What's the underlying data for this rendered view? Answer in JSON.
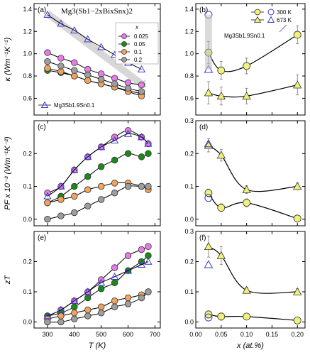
{
  "chart_data": [
    {
      "type": "line",
      "panel_label": "(a)",
      "annotation": "Mg3(Sb1−2xBixSnx)2",
      "ylabel": "κ (Wm⁻¹K⁻¹)",
      "xlim": [
        250,
        720
      ],
      "ylim": [
        0.45,
        1.45
      ],
      "y_ticks": [
        "0.6",
        "0.8",
        "1.0",
        "1.2",
        "1.4"
      ],
      "x_ticks": [],
      "legend_title": "x",
      "legend_position": "top-right",
      "series": [
        {
          "name": "0.025",
          "color": "#e87be8",
          "marker": "circle",
          "x": [
            300,
            350,
            400,
            450,
            500,
            550,
            600,
            650
          ],
          "y": [
            1.01,
            0.96,
            0.92,
            0.86,
            0.82,
            0.78,
            0.74,
            0.72
          ]
        },
        {
          "name": "0.05",
          "color": "#1a8a1a",
          "marker": "circle",
          "x": [
            300,
            350,
            400,
            450,
            500,
            550,
            600,
            650
          ],
          "y": [
            0.85,
            0.83,
            0.8,
            0.76,
            0.73,
            0.7,
            0.67,
            0.64
          ]
        },
        {
          "name": "0.1",
          "color": "#f5a35c",
          "marker": "circle",
          "x": [
            300,
            350,
            400,
            450,
            500,
            550,
            600,
            650
          ],
          "y": [
            0.87,
            0.84,
            0.8,
            0.76,
            0.73,
            0.7,
            0.66,
            0.62
          ]
        },
        {
          "name": "0.2",
          "color": "#9e9e9e",
          "marker": "circle",
          "x": [
            300,
            350,
            400,
            450,
            500,
            550,
            600,
            650
          ],
          "y": [
            0.93,
            0.89,
            0.85,
            0.81,
            0.77,
            0.73,
            0.69,
            0.66
          ]
        },
        {
          "name": "Mg3Sb1.9Sn0.1",
          "color": "#3a3ad0",
          "marker": "triangle-open",
          "x": [
            300,
            350,
            400,
            450,
            500,
            550,
            600,
            650
          ],
          "y": [
            1.35,
            1.27,
            1.21,
            1.13,
            1.06,
            0.99,
            0.92,
            0.86
          ]
        }
      ],
      "arrow": {
        "from": [
          300,
          1.36
        ],
        "to": [
          650,
          0.73
        ]
      }
    },
    {
      "type": "scatter",
      "panel_label": "(b)",
      "xlim": [
        0.0,
        0.215
      ],
      "ylim": [
        0.45,
        1.45
      ],
      "y_ticks": [
        "0.6",
        "0.8",
        "1.0",
        "1.2",
        "1.4"
      ],
      "x_ticks": [],
      "legend": [
        {
          "label": "300 K",
          "marker": "circle"
        },
        {
          "label": "673 K",
          "marker": "triangle"
        }
      ],
      "annotation": "Mg3Sb1.9Sn0.1",
      "series": [
        {
          "name": "300 K",
          "color": "#f1f17a",
          "marker": "circle",
          "x": [
            0.025,
            0.05,
            0.1,
            0.2
          ],
          "y": [
            1.01,
            0.85,
            0.89,
            1.17
          ],
          "err": [
            0.1,
            0.08,
            0.07,
            0.08
          ]
        },
        {
          "name": "673 K",
          "color": "#f1f17a",
          "marker": "triangle",
          "x": [
            0.025,
            0.05,
            0.1,
            0.2
          ],
          "y": [
            0.65,
            0.62,
            0.62,
            0.72
          ],
          "err": [
            0.1,
            0.08,
            0.07,
            0.09
          ]
        },
        {
          "name": "Mg3Sb1.9Sn0.1 300 K",
          "color": "#3a3ad0",
          "marker": "circle-open",
          "x": [
            0.025
          ],
          "y": [
            1.35
          ],
          "err": [
            0
          ]
        },
        {
          "name": "Mg3Sb1.9Sn0.1 673 K",
          "color": "#3a3ad0",
          "marker": "triangle-open",
          "x": [
            0.025
          ],
          "y": [
            0.86
          ],
          "err": [
            0
          ]
        }
      ]
    },
    {
      "type": "line",
      "panel_label": "(c)",
      "ylabel": "PF x 10⁻³ (Wm⁻¹K⁻²)",
      "xlim": [
        250,
        720
      ],
      "ylim": [
        -0.02,
        0.3
      ],
      "y_ticks": [
        "0.0",
        "0.1",
        "0.2"
      ],
      "x_ticks": [],
      "series": [
        {
          "name": "0.025",
          "color": "#e87be8",
          "marker": "circle",
          "x": [
            300,
            350,
            400,
            450,
            500,
            550,
            600,
            650,
            675
          ],
          "y": [
            0.08,
            0.1,
            0.15,
            0.19,
            0.22,
            0.25,
            0.27,
            0.25,
            0.23
          ]
        },
        {
          "name": "0.05",
          "color": "#1a8a1a",
          "marker": "circle",
          "x": [
            300,
            350,
            400,
            450,
            500,
            550,
            600,
            650,
            675
          ],
          "y": [
            0.05,
            0.07,
            0.1,
            0.13,
            0.16,
            0.18,
            0.2,
            0.19,
            0.2
          ]
        },
        {
          "name": "0.1",
          "color": "#f5a35c",
          "marker": "circle",
          "x": [
            300,
            350,
            400,
            450,
            500,
            550,
            600,
            650,
            675
          ],
          "y": [
            0.05,
            0.06,
            0.07,
            0.09,
            0.1,
            0.11,
            0.11,
            0.1,
            0.09
          ]
        },
        {
          "name": "0.2",
          "color": "#9e9e9e",
          "marker": "circle",
          "x": [
            300,
            350,
            400,
            450,
            500,
            550,
            600,
            650,
            675
          ],
          "y": [
            0.0,
            0.01,
            0.02,
            0.04,
            0.06,
            0.08,
            0.1,
            0.1,
            0.1
          ]
        },
        {
          "name": "Mg3Sb1.9Sn0.1",
          "color": "#3a3ad0",
          "marker": "triangle-open",
          "x": [
            300,
            350,
            400,
            450,
            500,
            550,
            600,
            650,
            675
          ],
          "y": [
            0.07,
            0.1,
            0.15,
            0.19,
            0.22,
            0.24,
            0.26,
            0.25,
            0.23
          ]
        }
      ]
    },
    {
      "type": "scatter",
      "panel_label": "(d)",
      "xlim": [
        0.0,
        0.215
      ],
      "ylim": [
        -0.02,
        0.3
      ],
      "y_ticks": [
        "0.0",
        "0.1",
        "0.2",
        "0.3"
      ],
      "x_ticks": [],
      "series": [
        {
          "name": "300 K",
          "color": "#f1f17a",
          "marker": "circle",
          "x": [
            0.025,
            0.05,
            0.1,
            0.2
          ],
          "y": [
            0.08,
            0.035,
            0.05,
            0.002
          ],
          "err": [
            0.012,
            0.012,
            0.012,
            0.01
          ]
        },
        {
          "name": "673 K",
          "color": "#f1f17a",
          "marker": "triangle",
          "x": [
            0.025,
            0.05,
            0.1,
            0.2
          ],
          "y": [
            0.225,
            0.195,
            0.09,
            0.1
          ],
          "err": [
            0.02,
            0.018,
            0.012,
            0.01
          ]
        },
        {
          "name": "Mg3Sb1.9Sn0.1 300 K",
          "color": "#3a3ad0",
          "marker": "circle-open",
          "x": [
            0.025
          ],
          "y": [
            0.065
          ],
          "err": [
            0
          ]
        },
        {
          "name": "Mg3Sb1.9Sn0.1 673 K",
          "color": "#3a3ad0",
          "marker": "triangle-open",
          "x": [
            0.025
          ],
          "y": [
            0.23
          ],
          "err": [
            0
          ]
        }
      ]
    },
    {
      "type": "line",
      "panel_label": "(e)",
      "ylabel": "zT",
      "xlabel": "T (K)",
      "xlim": [
        250,
        720
      ],
      "ylim": [
        -0.02,
        0.3
      ],
      "y_ticks": [
        "0.0",
        "0.1",
        "0.2"
      ],
      "x_ticks": [
        "300",
        "400",
        "500",
        "600",
        "700"
      ],
      "series": [
        {
          "name": "0.025",
          "color": "#e87be8",
          "marker": "circle",
          "x": [
            300,
            350,
            400,
            450,
            500,
            550,
            600,
            650,
            675
          ],
          "y": [
            0.02,
            0.04,
            0.07,
            0.1,
            0.14,
            0.18,
            0.22,
            0.24,
            0.25
          ]
        },
        {
          "name": "0.05",
          "color": "#1a8a1a",
          "marker": "circle",
          "x": [
            300,
            350,
            400,
            450,
            500,
            550,
            600,
            650,
            675
          ],
          "y": [
            0.02,
            0.03,
            0.05,
            0.08,
            0.11,
            0.13,
            0.17,
            0.2,
            0.22
          ]
        },
        {
          "name": "0.1",
          "color": "#f5a35c",
          "marker": "circle",
          "x": [
            300,
            350,
            400,
            450,
            500,
            550,
            600,
            650,
            675
          ],
          "y": [
            0.01,
            0.02,
            0.03,
            0.04,
            0.05,
            0.07,
            0.08,
            0.09,
            0.1
          ]
        },
        {
          "name": "0.2",
          "color": "#9e9e9e",
          "marker": "circle",
          "x": [
            300,
            350,
            400,
            450,
            500,
            550,
            600,
            650,
            675
          ],
          "y": [
            0.0,
            0.0,
            0.01,
            0.02,
            0.03,
            0.05,
            0.06,
            0.08,
            0.1
          ]
        },
        {
          "name": "Mg3Sb1.9Sn0.1",
          "color": "#3a3ad0",
          "marker": "triangle-open",
          "x": [
            300,
            350,
            400,
            450,
            500,
            550,
            600,
            650,
            675
          ],
          "y": [
            0.02,
            0.04,
            0.07,
            0.1,
            0.13,
            0.15,
            0.17,
            0.19,
            0.2
          ]
        }
      ]
    },
    {
      "type": "scatter",
      "panel_label": "(f)",
      "xlabel": "x (at.%)",
      "xlim": [
        0.0,
        0.215
      ],
      "ylim": [
        -0.02,
        0.3
      ],
      "y_ticks": [
        "0.0",
        "0.1",
        "0.2",
        "0.3"
      ],
      "x_ticks": [
        "0.00",
        "0.05",
        "0.10",
        "0.15",
        "0.20"
      ],
      "series": [
        {
          "name": "300 K",
          "color": "#f1f17a",
          "marker": "circle",
          "x": [
            0.025,
            0.05,
            0.1,
            0.2
          ],
          "y": [
            0.025,
            0.018,
            0.018,
            0.005
          ],
          "err": [
            0.012,
            0.012,
            0.008,
            0.008
          ]
        },
        {
          "name": "673 K",
          "color": "#f1f17a",
          "marker": "triangle",
          "x": [
            0.025,
            0.05,
            0.1,
            0.2
          ],
          "y": [
            0.25,
            0.22,
            0.105,
            0.1
          ],
          "err": [
            0.035,
            0.03,
            0.01,
            0.01
          ]
        },
        {
          "name": "Mg3Sb1.9Sn0.1 300 K",
          "color": "#3a3ad0",
          "marker": "circle-open",
          "x": [
            0.025
          ],
          "y": [
            0.015
          ],
          "err": [
            0
          ]
        },
        {
          "name": "Mg3Sb1.9Sn0.1 673 K",
          "color": "#3a3ad0",
          "marker": "triangle-open",
          "x": [
            0.025
          ],
          "y": [
            0.19
          ],
          "err": [
            0
          ]
        }
      ]
    }
  ]
}
